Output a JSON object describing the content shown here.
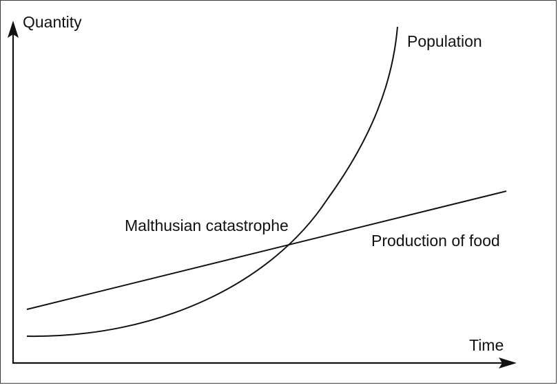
{
  "axes": {
    "y_label": "Quantity",
    "x_label": "Time"
  },
  "curves": {
    "population_label": "Population",
    "food_label": "Production of food"
  },
  "annotation": {
    "catastrophe_label": "Malthusian catastrophe"
  },
  "colors": {
    "line": "#111111",
    "background": "#ffffff",
    "border": "#3a3a3a"
  }
}
